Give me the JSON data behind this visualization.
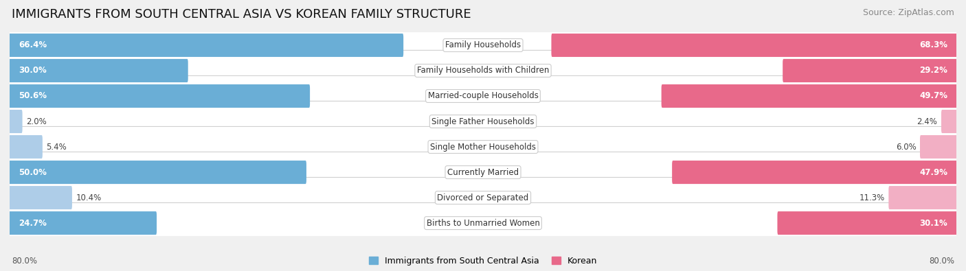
{
  "title": "IMMIGRANTS FROM SOUTH CENTRAL ASIA VS KOREAN FAMILY STRUCTURE",
  "source": "Source: ZipAtlas.com",
  "categories": [
    "Family Households",
    "Family Households with Children",
    "Married-couple Households",
    "Single Father Households",
    "Single Mother Households",
    "Currently Married",
    "Divorced or Separated",
    "Births to Unmarried Women"
  ],
  "left_values": [
    66.4,
    30.0,
    50.6,
    2.0,
    5.4,
    50.0,
    10.4,
    24.7
  ],
  "right_values": [
    68.3,
    29.2,
    49.7,
    2.4,
    6.0,
    47.9,
    11.3,
    30.1
  ],
  "left_label": "Immigrants from South Central Asia",
  "right_label": "Korean",
  "max_val": 80.0,
  "left_color_large": "#6aaed6",
  "left_color_small": "#aecde8",
  "right_color_large": "#e8698a",
  "right_color_small": "#f2afc4",
  "bg_color": "#f0f0f0",
  "row_bg_color": "#ffffff",
  "row_alt_bg": "#f5f5f5",
  "title_fontsize": 13,
  "source_fontsize": 9,
  "bar_label_fontsize": 8.5,
  "cat_label_fontsize": 8.5,
  "legend_fontsize": 9,
  "axis_label_fontsize": 8.5,
  "threshold_for_large": 20.0
}
